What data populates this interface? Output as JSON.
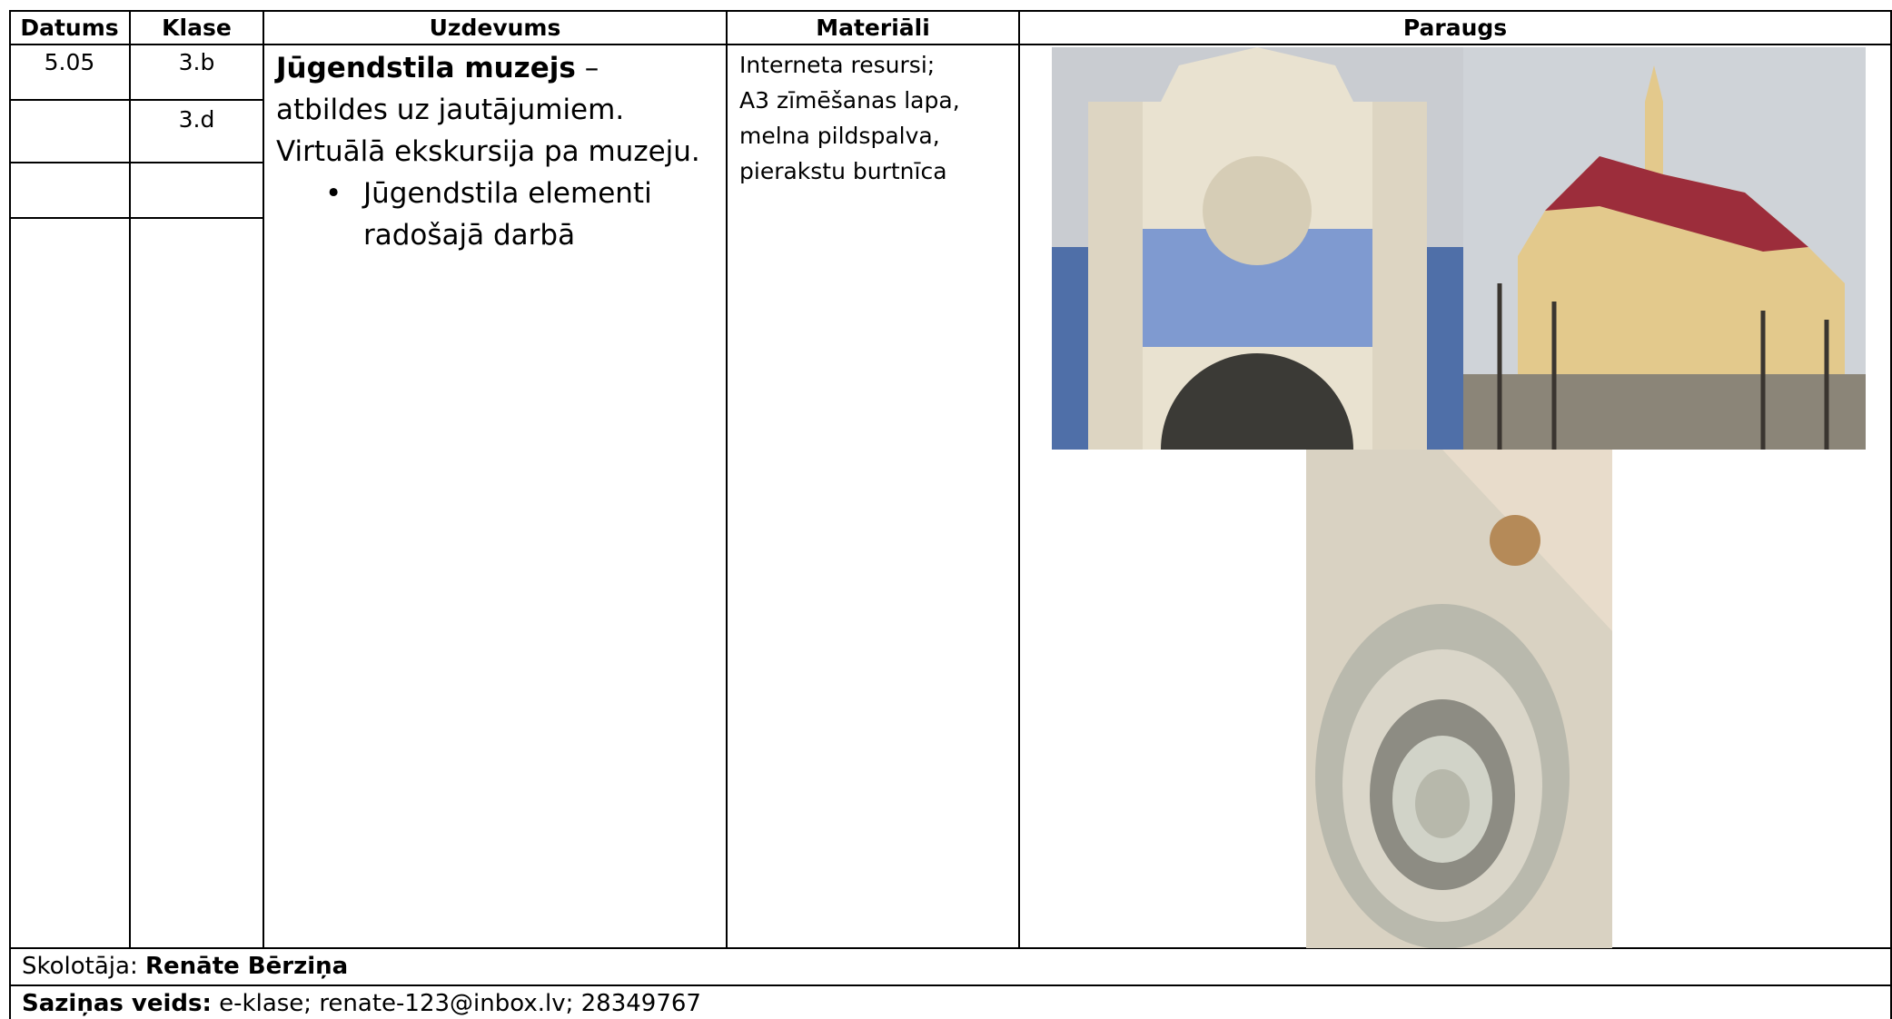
{
  "table": {
    "headers": [
      "Datums",
      "Klase",
      "Uzdevums",
      "Materiāli",
      "Paraugs"
    ],
    "date": "5.05",
    "classes": [
      "3.b",
      "3.d"
    ],
    "task": {
      "title": "Jūgendstila muzejs",
      "text": "– atbildes uz jautājumiem. Virtuālā ekskursija pa muzeju.",
      "bullets": [
        "Jūgendstila elementi radošajā darbā"
      ]
    },
    "materials": [
      "Interneta resursi;",
      "A3 zīmēšanas lapa,",
      "melna pildspalva,",
      "pierakstu burtnīca"
    ]
  },
  "footer": {
    "teacher_label": "Skolotāja:",
    "teacher": "Renāte Bērziņa",
    "contact_label": "Saziņas veids:",
    "contact": "e-klase; renate-123@inbox.lv; 28349767"
  }
}
